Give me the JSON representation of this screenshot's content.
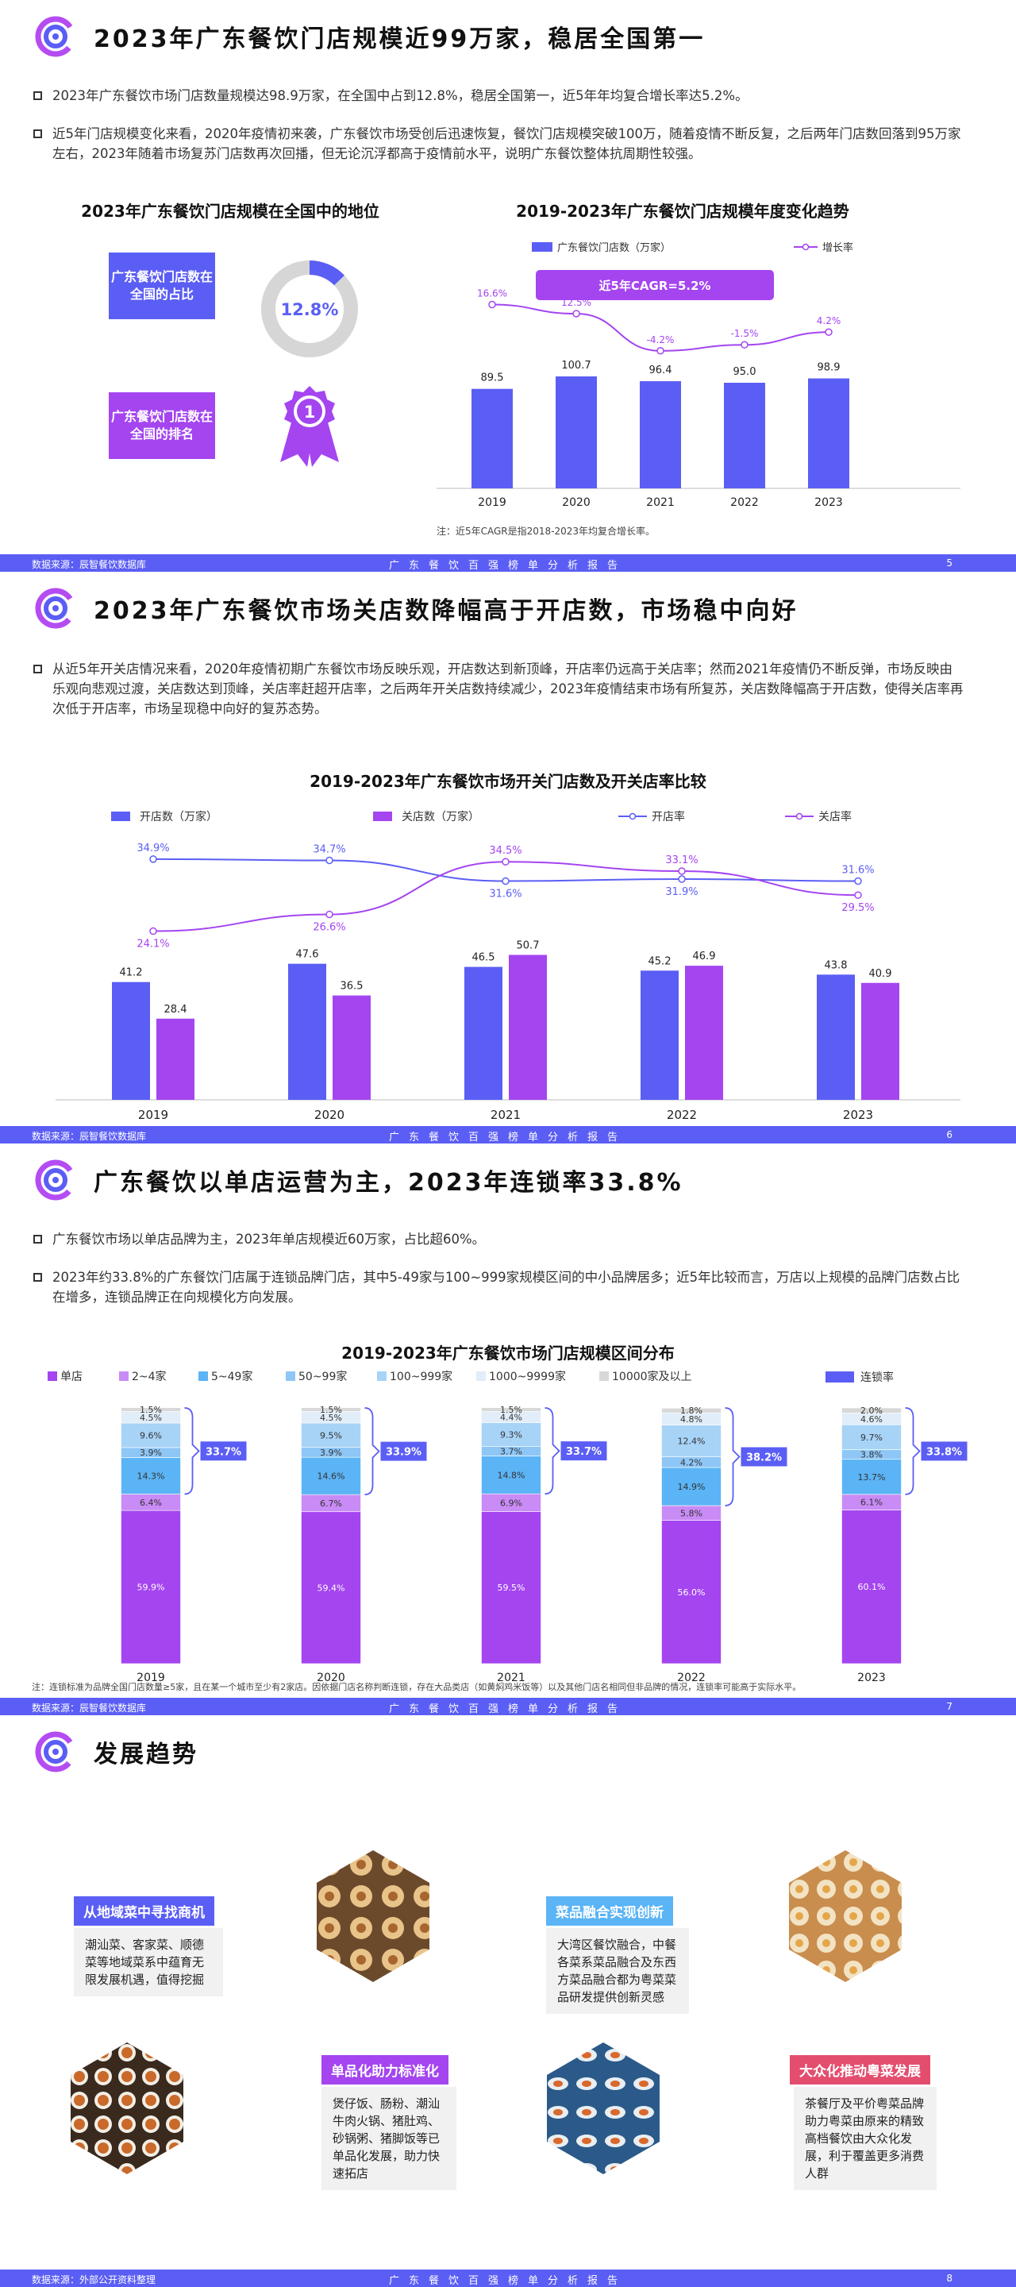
{
  "colors": {
    "blue": "#5b5ef4",
    "purple": "#a445f0",
    "light_purple": "#c98bf6",
    "sky": "#5bb4f5",
    "pale_blue": "#a7d3f7",
    "grey": "#d8d8d8",
    "brand_blue": "#5b5ef4"
  },
  "slide5": {
    "title": "2023年广东餐饮门店规模近99万家，稳居全国第一",
    "bullets": [
      "2023年广东餐饮市场门店数量规模达98.9万家，在全国中占到12.8%，稳居全国第一，近5年年均复合增长率达5.2%。",
      "近5年门店规模变化来看，2020年疫情初来袭，广东餐饮市场受创后迅速恢复，餐饮门店规模突破100万，随着疫情不断反复，之后两年门店数回落到95万家左右，2023年随着市场复苏门店数再次回播，但无论沉浮都高于疫情前水平，说明广东餐饮整体抗周期性较强。"
    ],
    "left_title": "2023年广东餐饮门店规模在全国中的地位",
    "share_label": "广东餐饮门店数在全国的占比",
    "share_value": "12.8%",
    "share_fraction": 0.128,
    "rank_label": "广东餐饮门店数在全国的排名",
    "rank_value": "1",
    "right_title": "2019-2023年广东餐饮门店规模年度变化趋势",
    "cagr_label": "近5年CAGR=5.2%",
    "note": "注：近5年CAGR是指2018-2023年均复合增长率。",
    "footer_src": "数据来源：辰智餐饮数据库",
    "footer_mid": "广东餐饮百强榜单分析报告",
    "page": "5"
  },
  "slide6": {
    "title": "2023年广东餐饮市场关店数降幅高于开店数，市场稳中向好",
    "bullet": "从近5年开关店情况来看，2020年疫情初期广东餐饮市场反映乐观，开店数达到新顶峰，开店率仍远高于关店率；然而2021年疫情仍不断反弹，市场反映由乐观向悲观过渡，关店数达到顶峰，关店率赶超开店率，之后两年开关店数持续减少，2023年疫情结束市场有所复苏，关店数降幅高于开店数，使得关店率再次低于开店率，市场呈现稳中向好的复苏态势。",
    "chart_title": "2019-2023年广东餐饮市场开关门店数及开关店率比较",
    "footer_src": "数据来源：辰智餐饮数据库",
    "footer_mid": "广东餐饮百强榜单分析报告",
    "page": "6"
  },
  "slide7": {
    "title": "广东餐饮以单店运营为主，2023年连锁率33.8%",
    "bullets": [
      "广东餐饮市场以单店品牌为主，2023年单店规模近60万家，占比超60%。",
      "2023年约33.8%的广东餐饮门店属于连锁品牌门店，其中5-49家与100~999家规模区间的中小品牌居多；近5年比较而言，万店以上规模的品牌门店数占比在增多，连锁品牌正在向规模化方向发展。"
    ],
    "chart_title": "2019-2023年广东餐饮市场门店规模区间分布",
    "note": "注：连锁标准为品牌全国门店数量≥5家，且在某一个城市至少有2家店。因依据门店名称判断连锁，存在大品类店（如黄焖鸡米饭等）以及其他门店名相同但非品牌的情况，连锁率可能高于实际水平。",
    "footer_src": "数据来源：辰智餐饮数据库",
    "footer_mid": "广东餐饮百强榜单分析报告",
    "page": "7"
  },
  "slide8": {
    "title": "发展趋势",
    "items": [
      {
        "tag": "从地域菜中寻找商机",
        "text": "潮汕菜、客家菜、顺德菜等地域菜系中蕴育无限发展机遇，值得挖掘"
      },
      {
        "tag": "菜品融合实现创新",
        "text": "大湾区餐饮融合，中餐各菜系菜品融合及东西方菜品融合都为粤菜菜品研发提供创新灵感"
      },
      {
        "tag": "单品化助力标准化",
        "text": "煲仔饭、肠粉、潮汕牛肉火锅、猪肚鸡、砂锅粥、猪脚饭等已单品化发展，助力快速拓店"
      },
      {
        "tag": "大众化推动粤菜发展",
        "text": "茶餐厅及平价粤菜品牌助力粤菜由原来的精致高档餐饮由大众化发展，利于覆盖更多消费人群"
      }
    ],
    "images": [
      "food-platter-image",
      "dim-sum-image",
      "banquet-image",
      "shrimp-dish-image"
    ],
    "footer_src": "数据来源：外部公开资料整理",
    "footer_mid": "广东餐饮百强榜单分析报告",
    "page": "8"
  },
  "chart_data": [
    {
      "type": "bar",
      "title": "2019-2023年广东餐饮门店规模年度变化趋势",
      "categories": [
        "2019",
        "2020",
        "2021",
        "2022",
        "2023"
      ],
      "series": [
        {
          "name": "广东餐饮门店数（万家）",
          "type": "bar",
          "values": [
            89.5,
            100.7,
            96.4,
            95.0,
            98.9
          ],
          "labels": [
            "89.5",
            "100.7",
            "96.4",
            "95.0",
            "98.9"
          ]
        },
        {
          "name": "增长率",
          "type": "line",
          "values": [
            16.6,
            12.5,
            -4.2,
            -1.5,
            4.2
          ],
          "labels": [
            "16.6%",
            "12.5%",
            "-4.2%",
            "-1.5%",
            "4.2%"
          ]
        }
      ]
    },
    {
      "type": "bar",
      "title": "2019-2023年广东餐饮市场开关门店数及开关店率比较",
      "categories": [
        "2019",
        "2020",
        "2021",
        "2022",
        "2023"
      ],
      "series": [
        {
          "name": "开店数（万家）",
          "type": "bar",
          "values": [
            41.2,
            47.6,
            46.5,
            45.2,
            43.8
          ],
          "labels": [
            "41.2",
            "47.6",
            "46.5",
            "45.2",
            "43.8"
          ]
        },
        {
          "name": "关店数（万家）",
          "type": "bar",
          "values": [
            28.4,
            36.5,
            50.7,
            46.9,
            40.9
          ],
          "labels": [
            "28.4",
            "36.5",
            "50.7",
            "46.9",
            "40.9"
          ]
        },
        {
          "name": "开店率",
          "type": "line",
          "values": [
            34.9,
            34.7,
            31.6,
            31.9,
            31.6
          ],
          "labels": [
            "34.9%",
            "34.7%",
            "31.6%",
            "31.9%",
            "31.6%"
          ]
        },
        {
          "name": "关店率",
          "type": "line",
          "values": [
            24.1,
            26.6,
            34.5,
            33.1,
            29.5
          ],
          "labels": [
            "24.1%",
            "26.6%",
            "34.5%",
            "33.1%",
            "29.5%"
          ]
        }
      ]
    },
    {
      "type": "bar",
      "title": "2019-2023年广东餐饮市场门店规模区间分布",
      "categories": [
        "2019",
        "2020",
        "2021",
        "2022",
        "2023"
      ],
      "series": [
        {
          "name": "单店",
          "values": [
            59.9,
            59.4,
            59.5,
            56.0,
            60.1
          ],
          "labels": [
            "59.9%",
            "59.4%",
            "59.5%",
            "56.0%",
            "60.1%"
          ]
        },
        {
          "name": "2~4家",
          "values": [
            6.4,
            6.7,
            6.9,
            5.8,
            6.1
          ],
          "labels": [
            "6.4%",
            "6.7%",
            "6.9%",
            "5.8%",
            "6.1%"
          ]
        },
        {
          "name": "5~49家",
          "values": [
            14.3,
            14.6,
            14.8,
            14.9,
            13.7
          ],
          "labels": [
            "14.3%",
            "14.6%",
            "14.8%",
            "14.9%",
            "13.7%"
          ]
        },
        {
          "name": "50~99家",
          "values": [
            3.9,
            3.9,
            3.7,
            4.2,
            3.8
          ],
          "labels": [
            "3.9%",
            "3.9%",
            "3.7%",
            "4.2%",
            "3.8%"
          ]
        },
        {
          "name": "100~999家",
          "values": [
            9.6,
            9.5,
            9.3,
            12.4,
            9.7
          ],
          "labels": [
            "9.6%",
            "9.5%",
            "9.3%",
            "12.4%",
            "9.7%"
          ]
        },
        {
          "name": "1000~9999家",
          "values": [
            4.5,
            4.5,
            4.4,
            4.8,
            4.6
          ],
          "labels": [
            "4.5%",
            "4.5%",
            "4.4%",
            "4.8%",
            "4.6%"
          ]
        },
        {
          "name": "10000家及以上",
          "values": [
            1.5,
            1.5,
            1.5,
            1.8,
            2.0
          ],
          "labels": [
            "1.5%",
            "1.5%",
            "1.5%",
            "1.8%",
            "2.0%"
          ]
        }
      ],
      "chain_rate_name": "连锁率",
      "chain_rate": [
        33.7,
        33.9,
        33.7,
        38.2,
        33.8
      ],
      "chain_rate_labels": [
        "33.7%",
        "33.9%",
        "33.7%",
        "38.2%",
        "33.8%"
      ]
    }
  ]
}
